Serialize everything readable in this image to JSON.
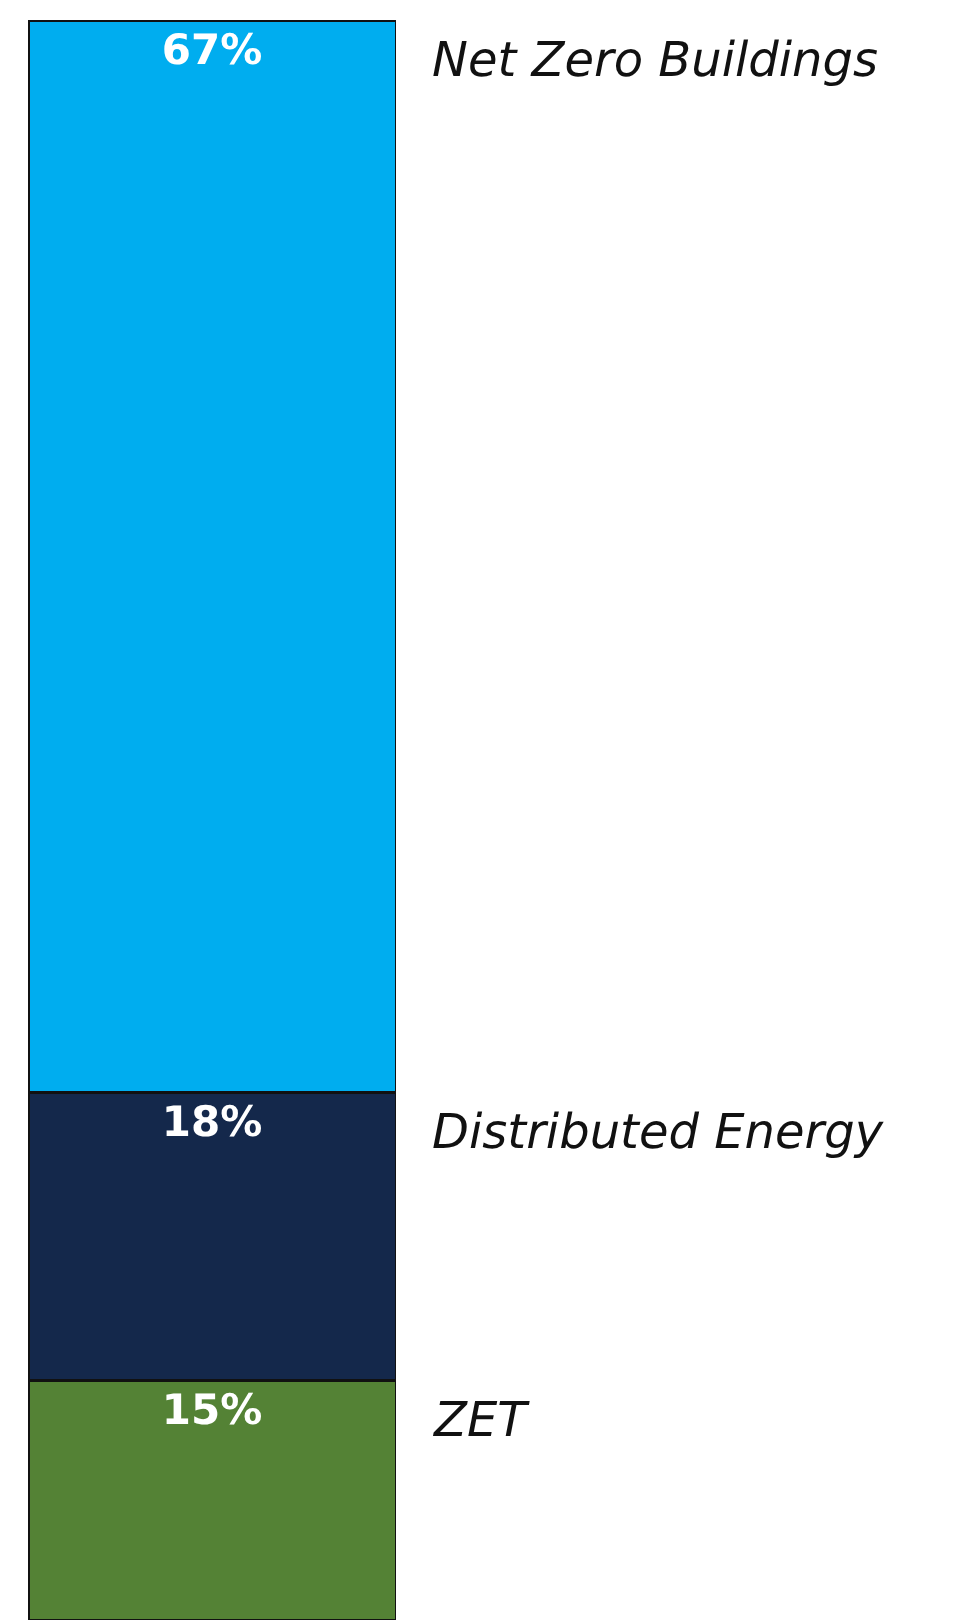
{
  "chart_data": {
    "type": "bar",
    "stacked": true,
    "categories": [
      null
    ],
    "series": [
      {
        "name": "ZET",
        "color": "#548235",
        "values": [
          15
        ],
        "value_labels": [
          "15%"
        ]
      },
      {
        "name": "Distributed Energy",
        "color": "#14284b",
        "values": [
          18
        ],
        "value_labels": [
          "18%"
        ]
      },
      {
        "name": "Net Zero Buildings",
        "color": "#00adef",
        "values": [
          67
        ],
        "value_labels": [
          "67%"
        ]
      }
    ],
    "legend": false
  }
}
